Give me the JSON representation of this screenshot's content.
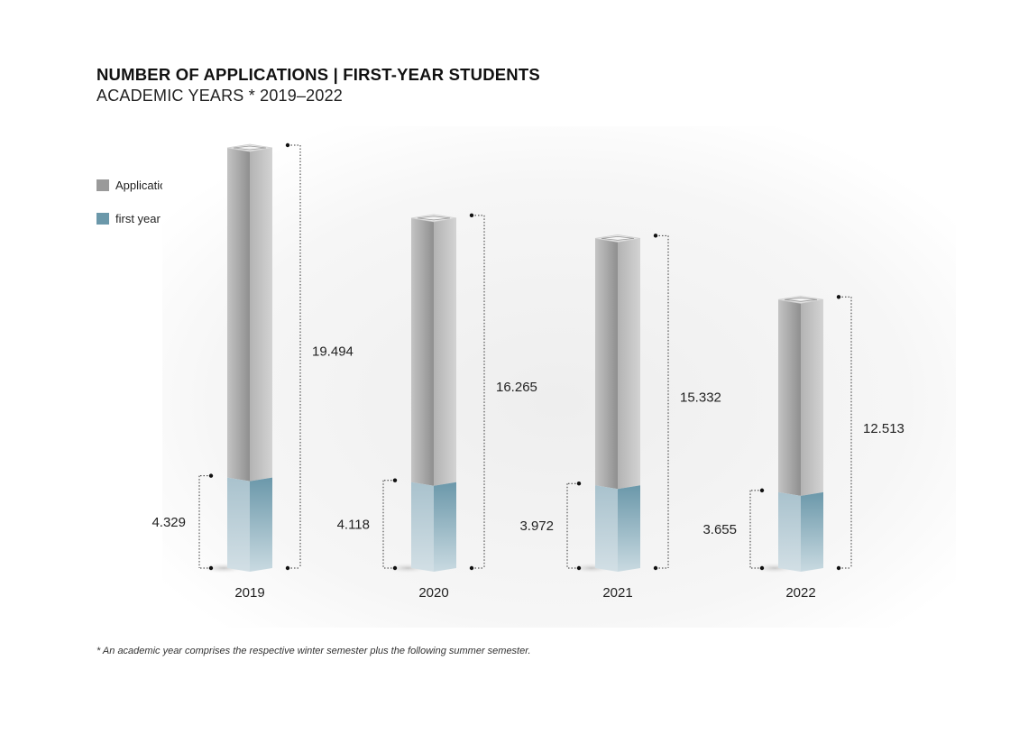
{
  "title": "NUMBER OF APPLICATIONS | FIRST-YEAR STUDENTS",
  "subtitle": "ACADEMIC YEARS * 2019–2022",
  "legend": [
    {
      "label": "Applications",
      "color": "#9a9a9a"
    },
    {
      "label": "first year students",
      "color": "#6b98aa"
    }
  ],
  "footnote": "* An academic year comprises the respective winter semester plus the following summer semester.",
  "chart_data": {
    "type": "bar",
    "categories": [
      "2019",
      "2020",
      "2021",
      "2022"
    ],
    "series": [
      {
        "name": "Applications",
        "values": [
          19494,
          16265,
          15332,
          12513
        ],
        "labels": [
          "19.494",
          "16.265",
          "15.332",
          "12.513"
        ]
      },
      {
        "name": "first year students",
        "values": [
          4329,
          4118,
          3972,
          3655
        ],
        "labels": [
          "4.329",
          "4.118",
          "3.972",
          "3.655"
        ]
      }
    ],
    "title": "NUMBER OF APPLICATIONS | FIRST-YEAR STUDENTS",
    "subtitle": "ACADEMIC YEARS * 2019–2022",
    "xlabel": "",
    "ylabel": "",
    "grid": false,
    "legend_position": "left",
    "colors": {
      "applications": "#9a9a9a",
      "students": "#6b98aa"
    }
  }
}
